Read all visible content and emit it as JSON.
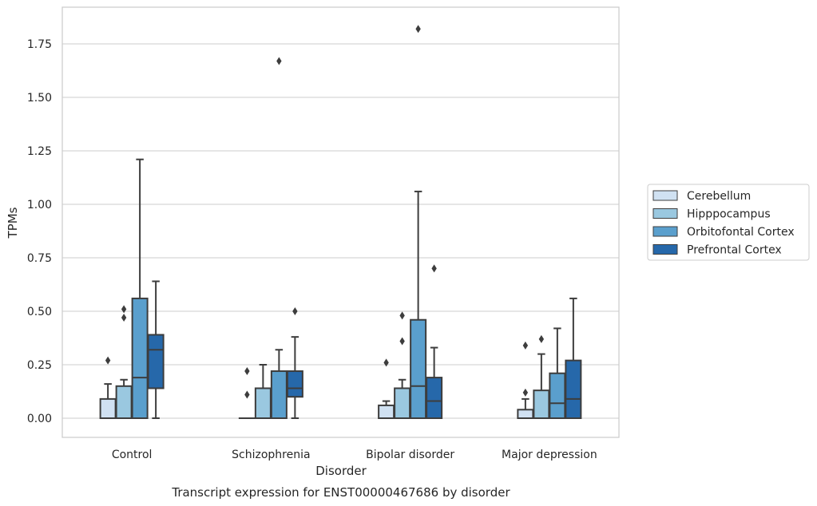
{
  "chart_data": {
    "type": "box",
    "caption": "Transcript expression for ENST00000467686 by disorder",
    "xlabel": "Disorder",
    "ylabel": "TPMs",
    "ylim": [
      -0.09,
      1.91
    ],
    "yticks": [
      0.0,
      0.25,
      0.5,
      0.75,
      1.0,
      1.25,
      1.5,
      1.75
    ],
    "ytick_labels": [
      "0.00",
      "0.25",
      "0.50",
      "0.75",
      "1.00",
      "1.25",
      "1.50",
      "1.75"
    ],
    "grid": true,
    "legend_position": "right",
    "categories": [
      "Control",
      "Schizophrenia",
      "Bipolar disorder",
      "Major depression"
    ],
    "series": [
      {
        "name": "Cerebellum",
        "color": "#d0e1f2",
        "boxes": [
          {
            "whisker_low": 0.0,
            "q1": 0.0,
            "median": 0.0,
            "q3": 0.09,
            "whisker_high": 0.16,
            "outliers": [
              0.27
            ]
          },
          {
            "whisker_low": 0.0,
            "q1": 0.0,
            "median": 0.0,
            "q3": 0.0,
            "whisker_high": 0.0,
            "outliers": [
              0.22,
              0.11
            ]
          },
          {
            "whisker_low": 0.0,
            "q1": 0.0,
            "median": 0.0,
            "q3": 0.06,
            "whisker_high": 0.08,
            "outliers": [
              0.26
            ]
          },
          {
            "whisker_low": 0.0,
            "q1": 0.0,
            "median": 0.0,
            "q3": 0.04,
            "whisker_high": 0.09,
            "outliers": [
              0.34,
              0.12
            ]
          }
        ]
      },
      {
        "name": "Hipppocampus",
        "color": "#9ac8e0",
        "boxes": [
          {
            "whisker_low": 0.0,
            "q1": 0.0,
            "median": 0.0,
            "q3": 0.15,
            "whisker_high": 0.18,
            "outliers": [
              0.51,
              0.47
            ]
          },
          {
            "whisker_low": 0.0,
            "q1": 0.0,
            "median": 0.0,
            "q3": 0.14,
            "whisker_high": 0.25,
            "outliers": []
          },
          {
            "whisker_low": 0.0,
            "q1": 0.0,
            "median": 0.0,
            "q3": 0.14,
            "whisker_high": 0.18,
            "outliers": [
              0.48,
              0.36
            ]
          },
          {
            "whisker_low": 0.0,
            "q1": 0.0,
            "median": 0.0,
            "q3": 0.13,
            "whisker_high": 0.3,
            "outliers": [
              0.37
            ]
          }
        ]
      },
      {
        "name": "Orbitofontal Cortex",
        "color": "#5a9fcd",
        "boxes": [
          {
            "whisker_low": 0.0,
            "q1": 0.0,
            "median": 0.19,
            "q3": 0.56,
            "whisker_high": 1.21,
            "outliers": []
          },
          {
            "whisker_low": 0.0,
            "q1": 0.0,
            "median": 0.0,
            "q3": 0.22,
            "whisker_high": 0.32,
            "outliers": [
              1.67
            ]
          },
          {
            "whisker_low": 0.0,
            "q1": 0.0,
            "median": 0.15,
            "q3": 0.46,
            "whisker_high": 1.06,
            "outliers": [
              1.82
            ]
          },
          {
            "whisker_low": 0.0,
            "q1": 0.0,
            "median": 0.07,
            "q3": 0.21,
            "whisker_high": 0.42,
            "outliers": []
          }
        ]
      },
      {
        "name": "Prefrontal Cortex",
        "color": "#2668aa",
        "boxes": [
          {
            "whisker_low": 0.0,
            "q1": 0.14,
            "median": 0.32,
            "q3": 0.39,
            "whisker_high": 0.64,
            "outliers": []
          },
          {
            "whisker_low": 0.0,
            "q1": 0.1,
            "median": 0.14,
            "q3": 0.22,
            "whisker_high": 0.38,
            "outliers": [
              0.5
            ]
          },
          {
            "whisker_low": 0.0,
            "q1": 0.0,
            "median": 0.08,
            "q3": 0.19,
            "whisker_high": 0.33,
            "outliers": [
              0.7
            ]
          },
          {
            "whisker_low": 0.0,
            "q1": 0.0,
            "median": 0.09,
            "q3": 0.27,
            "whisker_high": 0.56,
            "outliers": []
          }
        ]
      }
    ]
  }
}
